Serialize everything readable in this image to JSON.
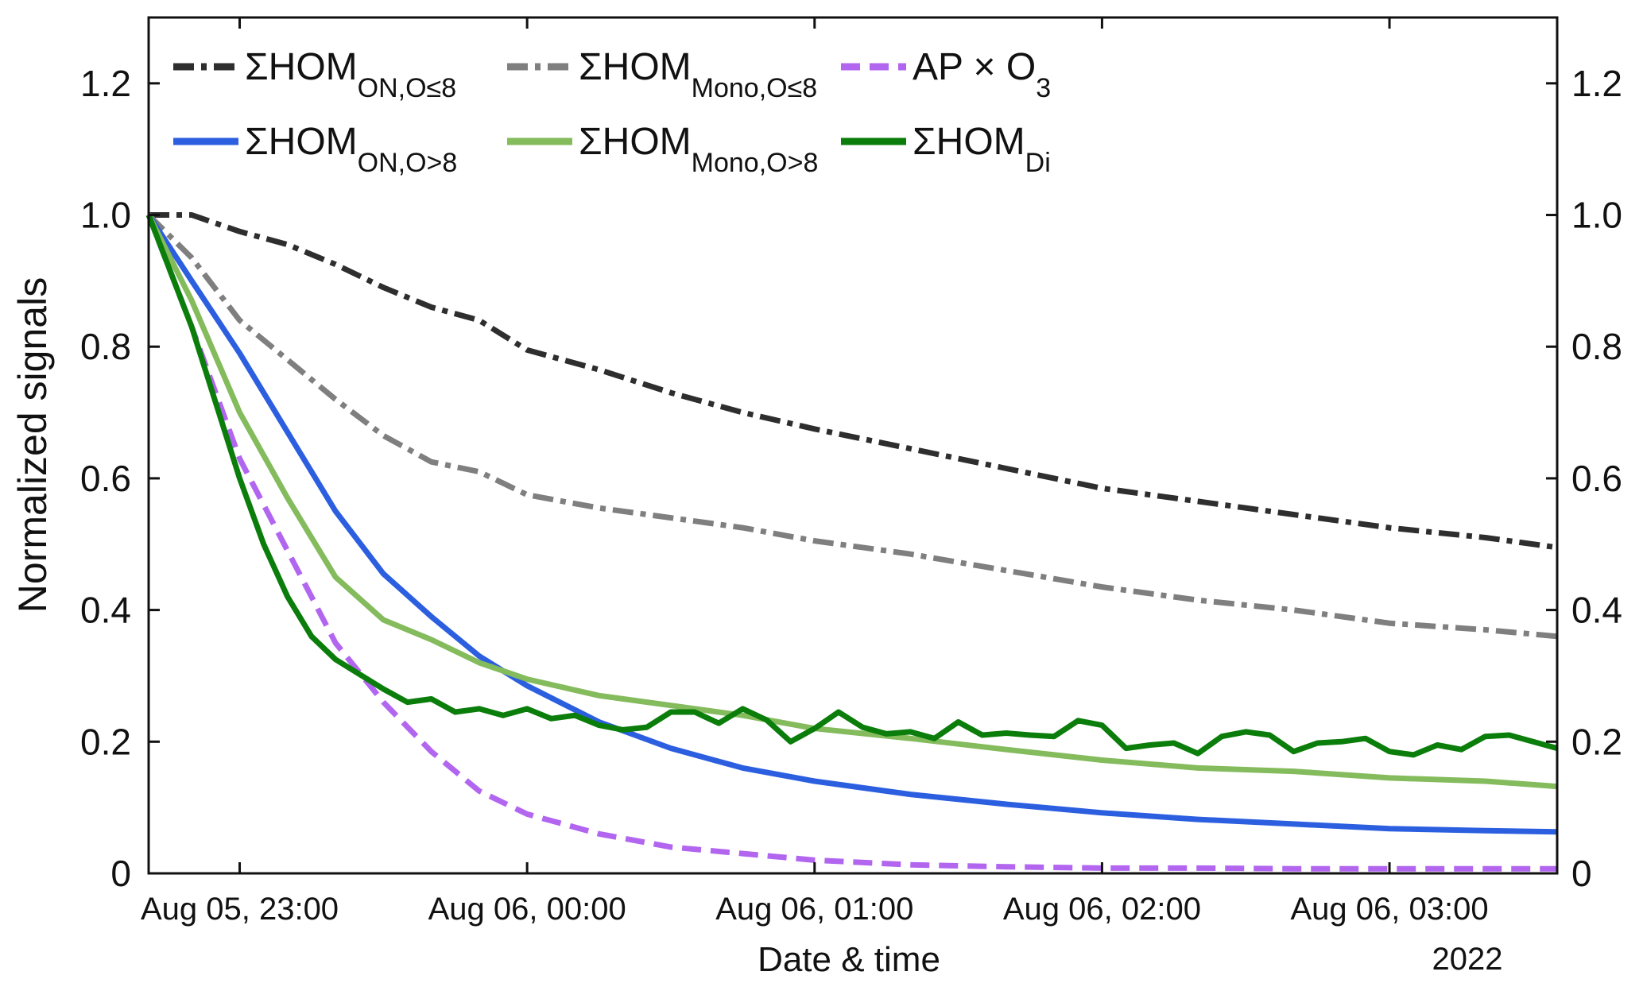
{
  "chart_data": {
    "type": "line",
    "xlabel": "Date & time",
    "ylabel": "Normalized signals",
    "year_label": "2022",
    "x_unit": "datetime",
    "x_range": [
      "2022-08-05 22:41",
      "2022-08-06 03:35"
    ],
    "x_ticks": [
      {
        "t": "2022-08-05 23:00",
        "label": "Aug 05, 23:00"
      },
      {
        "t": "2022-08-06 00:00",
        "label": "Aug 06, 00:00"
      },
      {
        "t": "2022-08-06 01:00",
        "label": "Aug 06, 01:00"
      },
      {
        "t": "2022-08-06 02:00",
        "label": "Aug 06, 02:00"
      },
      {
        "t": "2022-08-06 03:00",
        "label": "Aug 06, 03:00"
      }
    ],
    "ylim": [
      0,
      1.3
    ],
    "y_ticks": [
      0,
      0.2,
      0.4,
      0.6,
      0.8,
      1.0,
      1.2
    ],
    "y_tick_labels": [
      "0",
      "0.2",
      "0.4",
      "0.6",
      "0.8",
      "1.0",
      "1.2"
    ],
    "secondary_y_axis": true,
    "grid": false,
    "legend": {
      "position": "top-left",
      "columns": 3
    },
    "series": [
      {
        "key": "on_le8",
        "name": "ΣHOM",
        "sub": "ON,O≤8",
        "color": "#2e2e2e",
        "dash": "26,9,7,9",
        "width": 7,
        "points": [
          [
            "2022-08-05 22:41",
            1.0
          ],
          [
            "2022-08-05 22:50",
            1.0
          ],
          [
            "2022-08-05 23:00",
            0.975
          ],
          [
            "2022-08-05 23:10",
            0.955
          ],
          [
            "2022-08-05 23:20",
            0.925
          ],
          [
            "2022-08-05 23:30",
            0.89
          ],
          [
            "2022-08-05 23:40",
            0.86
          ],
          [
            "2022-08-05 23:50",
            0.84
          ],
          [
            "2022-08-06 00:00",
            0.795
          ],
          [
            "2022-08-06 00:15",
            0.765
          ],
          [
            "2022-08-06 00:30",
            0.73
          ],
          [
            "2022-08-06 00:45",
            0.7
          ],
          [
            "2022-08-06 01:00",
            0.675
          ],
          [
            "2022-08-06 01:20",
            0.645
          ],
          [
            "2022-08-06 01:40",
            0.615
          ],
          [
            "2022-08-06 02:00",
            0.585
          ],
          [
            "2022-08-06 02:20",
            0.565
          ],
          [
            "2022-08-06 02:40",
            0.545
          ],
          [
            "2022-08-06 03:00",
            0.525
          ],
          [
            "2022-08-06 03:20",
            0.51
          ],
          [
            "2022-08-06 03:35",
            0.495
          ]
        ]
      },
      {
        "key": "mono_le8",
        "name": "ΣHOM",
        "sub": "Mono,O≤8",
        "color": "#7f7f7f",
        "dash": "26,9,7,9",
        "width": 7,
        "points": [
          [
            "2022-08-05 22:41",
            1.0
          ],
          [
            "2022-08-05 22:50",
            0.935
          ],
          [
            "2022-08-05 23:00",
            0.84
          ],
          [
            "2022-08-05 23:10",
            0.78
          ],
          [
            "2022-08-05 23:20",
            0.72
          ],
          [
            "2022-08-05 23:30",
            0.665
          ],
          [
            "2022-08-05 23:40",
            0.625
          ],
          [
            "2022-08-05 23:50",
            0.61
          ],
          [
            "2022-08-06 00:00",
            0.575
          ],
          [
            "2022-08-06 00:15",
            0.555
          ],
          [
            "2022-08-06 00:30",
            0.54
          ],
          [
            "2022-08-06 00:45",
            0.525
          ],
          [
            "2022-08-06 01:00",
            0.505
          ],
          [
            "2022-08-06 01:20",
            0.485
          ],
          [
            "2022-08-06 01:40",
            0.46
          ],
          [
            "2022-08-06 02:00",
            0.435
          ],
          [
            "2022-08-06 02:20",
            0.415
          ],
          [
            "2022-08-06 02:40",
            0.4
          ],
          [
            "2022-08-06 03:00",
            0.38
          ],
          [
            "2022-08-06 03:20",
            0.37
          ],
          [
            "2022-08-06 03:35",
            0.36
          ]
        ]
      },
      {
        "key": "apo3",
        "name": "AP × O",
        "sub": "3",
        "color": "#b266f0",
        "dash": "24,12",
        "width": 7,
        "points": [
          [
            "2022-08-05 22:41",
            1.0
          ],
          [
            "2022-08-05 22:50",
            0.83
          ],
          [
            "2022-08-05 23:00",
            0.63
          ],
          [
            "2022-08-05 23:10",
            0.49
          ],
          [
            "2022-08-05 23:20",
            0.35
          ],
          [
            "2022-08-05 23:30",
            0.26
          ],
          [
            "2022-08-05 23:40",
            0.185
          ],
          [
            "2022-08-05 23:50",
            0.125
          ],
          [
            "2022-08-06 00:00",
            0.09
          ],
          [
            "2022-08-06 00:15",
            0.06
          ],
          [
            "2022-08-06 00:30",
            0.04
          ],
          [
            "2022-08-06 00:45",
            0.03
          ],
          [
            "2022-08-06 01:00",
            0.02
          ],
          [
            "2022-08-06 01:20",
            0.013
          ],
          [
            "2022-08-06 01:40",
            0.01
          ],
          [
            "2022-08-06 02:00",
            0.008
          ],
          [
            "2022-08-06 02:20",
            0.008
          ],
          [
            "2022-08-06 02:40",
            0.007
          ],
          [
            "2022-08-06 03:00",
            0.007
          ],
          [
            "2022-08-06 03:20",
            0.007
          ],
          [
            "2022-08-06 03:35",
            0.007
          ]
        ]
      },
      {
        "key": "on_gt8",
        "name": "ΣHOM",
        "sub": "ON,O>8",
        "color": "#2c5fe0",
        "dash": "",
        "width": 7,
        "points": [
          [
            "2022-08-05 22:41",
            1.0
          ],
          [
            "2022-08-05 22:50",
            0.9
          ],
          [
            "2022-08-05 23:00",
            0.79
          ],
          [
            "2022-08-05 23:10",
            0.67
          ],
          [
            "2022-08-05 23:20",
            0.55
          ],
          [
            "2022-08-05 23:30",
            0.455
          ],
          [
            "2022-08-05 23:40",
            0.39
          ],
          [
            "2022-08-05 23:50",
            0.33
          ],
          [
            "2022-08-06 00:00",
            0.285
          ],
          [
            "2022-08-06 00:15",
            0.23
          ],
          [
            "2022-08-06 00:30",
            0.19
          ],
          [
            "2022-08-06 00:45",
            0.16
          ],
          [
            "2022-08-06 01:00",
            0.14
          ],
          [
            "2022-08-06 01:20",
            0.12
          ],
          [
            "2022-08-06 01:40",
            0.105
          ],
          [
            "2022-08-06 02:00",
            0.092
          ],
          [
            "2022-08-06 02:20",
            0.082
          ],
          [
            "2022-08-06 02:40",
            0.075
          ],
          [
            "2022-08-06 03:00",
            0.068
          ],
          [
            "2022-08-06 03:20",
            0.065
          ],
          [
            "2022-08-06 03:35",
            0.063
          ]
        ]
      },
      {
        "key": "mono_gt8",
        "name": "ΣHOM",
        "sub": "Mono,O>8",
        "color": "#84bb5c",
        "dash": "",
        "width": 7,
        "points": [
          [
            "2022-08-05 22:41",
            1.0
          ],
          [
            "2022-08-05 22:50",
            0.87
          ],
          [
            "2022-08-05 23:00",
            0.7
          ],
          [
            "2022-08-05 23:10",
            0.57
          ],
          [
            "2022-08-05 23:20",
            0.45
          ],
          [
            "2022-08-05 23:30",
            0.385
          ],
          [
            "2022-08-05 23:40",
            0.355
          ],
          [
            "2022-08-05 23:50",
            0.32
          ],
          [
            "2022-08-06 00:00",
            0.295
          ],
          [
            "2022-08-06 00:15",
            0.27
          ],
          [
            "2022-08-06 00:30",
            0.255
          ],
          [
            "2022-08-06 00:45",
            0.24
          ],
          [
            "2022-08-06 01:00",
            0.22
          ],
          [
            "2022-08-06 01:20",
            0.205
          ],
          [
            "2022-08-06 01:40",
            0.188
          ],
          [
            "2022-08-06 02:00",
            0.172
          ],
          [
            "2022-08-06 02:20",
            0.16
          ],
          [
            "2022-08-06 02:40",
            0.155
          ],
          [
            "2022-08-06 03:00",
            0.145
          ],
          [
            "2022-08-06 03:20",
            0.14
          ],
          [
            "2022-08-06 03:35",
            0.132
          ]
        ]
      },
      {
        "key": "di",
        "name": "ΣHOM",
        "sub": "Di",
        "color": "#0a7d0a",
        "dash": "",
        "width": 7,
        "points": [
          [
            "2022-08-05 22:41",
            1.0
          ],
          [
            "2022-08-05 22:50",
            0.83
          ],
          [
            "2022-08-05 23:00",
            0.6
          ],
          [
            "2022-08-05 23:05",
            0.5
          ],
          [
            "2022-08-05 23:10",
            0.42
          ],
          [
            "2022-08-05 23:15",
            0.36
          ],
          [
            "2022-08-05 23:20",
            0.325
          ],
          [
            "2022-08-05 23:30",
            0.28
          ],
          [
            "2022-08-05 23:35",
            0.26
          ],
          [
            "2022-08-05 23:40",
            0.265
          ],
          [
            "2022-08-05 23:45",
            0.245
          ],
          [
            "2022-08-05 23:50",
            0.25
          ],
          [
            "2022-08-05 23:55",
            0.24
          ],
          [
            "2022-08-06 00:00",
            0.25
          ],
          [
            "2022-08-06 00:05",
            0.235
          ],
          [
            "2022-08-06 00:10",
            0.24
          ],
          [
            "2022-08-06 00:15",
            0.225
          ],
          [
            "2022-08-06 00:20",
            0.218
          ],
          [
            "2022-08-06 00:25",
            0.222
          ],
          [
            "2022-08-06 00:30",
            0.245
          ],
          [
            "2022-08-06 00:35",
            0.245
          ],
          [
            "2022-08-06 00:40",
            0.228
          ],
          [
            "2022-08-06 00:45",
            0.25
          ],
          [
            "2022-08-06 00:50",
            0.233
          ],
          [
            "2022-08-06 00:55",
            0.2
          ],
          [
            "2022-08-06 01:00",
            0.22
          ],
          [
            "2022-08-06 01:05",
            0.245
          ],
          [
            "2022-08-06 01:10",
            0.222
          ],
          [
            "2022-08-06 01:15",
            0.212
          ],
          [
            "2022-08-06 01:20",
            0.215
          ],
          [
            "2022-08-06 01:25",
            0.205
          ],
          [
            "2022-08-06 01:30",
            0.23
          ],
          [
            "2022-08-06 01:35",
            0.21
          ],
          [
            "2022-08-06 01:40",
            0.213
          ],
          [
            "2022-08-06 01:45",
            0.21
          ],
          [
            "2022-08-06 01:50",
            0.208
          ],
          [
            "2022-08-06 01:55",
            0.232
          ],
          [
            "2022-08-06 02:00",
            0.225
          ],
          [
            "2022-08-06 02:05",
            0.19
          ],
          [
            "2022-08-06 02:10",
            0.195
          ],
          [
            "2022-08-06 02:15",
            0.198
          ],
          [
            "2022-08-06 02:20",
            0.182
          ],
          [
            "2022-08-06 02:25",
            0.208
          ],
          [
            "2022-08-06 02:30",
            0.215
          ],
          [
            "2022-08-06 02:35",
            0.21
          ],
          [
            "2022-08-06 02:40",
            0.185
          ],
          [
            "2022-08-06 02:45",
            0.198
          ],
          [
            "2022-08-06 02:50",
            0.2
          ],
          [
            "2022-08-06 02:55",
            0.205
          ],
          [
            "2022-08-06 03:00",
            0.185
          ],
          [
            "2022-08-06 03:05",
            0.18
          ],
          [
            "2022-08-06 03:10",
            0.195
          ],
          [
            "2022-08-06 03:15",
            0.188
          ],
          [
            "2022-08-06 03:20",
            0.208
          ],
          [
            "2022-08-06 03:25",
            0.21
          ],
          [
            "2022-08-06 03:35",
            0.19
          ]
        ]
      }
    ]
  }
}
